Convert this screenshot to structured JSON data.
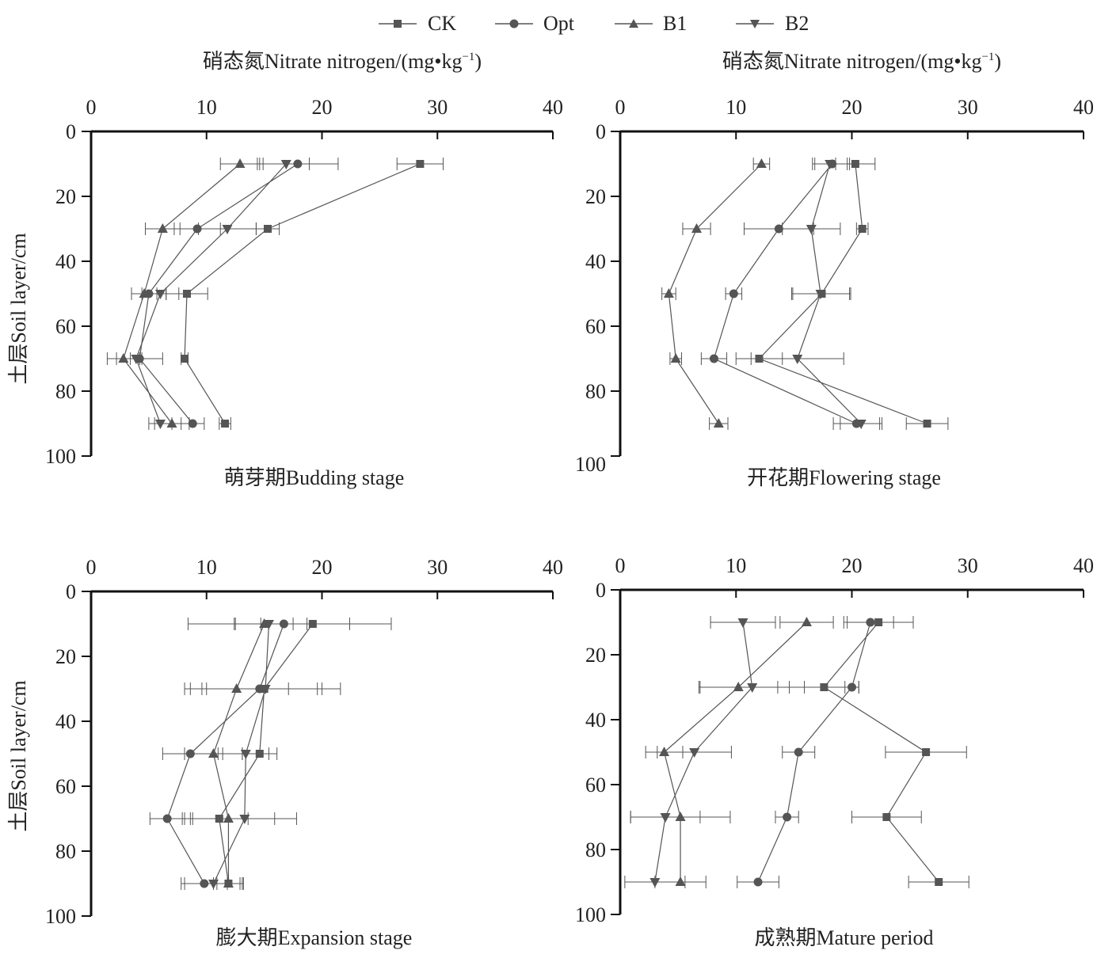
{
  "legend": [
    {
      "label": "CK",
      "marker": "square"
    },
    {
      "label": "Opt",
      "marker": "circle"
    },
    {
      "label": "B1",
      "marker": "triangle-up"
    },
    {
      "label": "B2",
      "marker": "triangle-down"
    }
  ],
  "top_xlabel": "硝态氮Nitrate nitrogen/(mg•kg",
  "top_xlabel_sup": "−1",
  "top_xlabel_close": ")",
  "ylabel": "土层Soil layer/cm",
  "colors": {
    "ink": "#555555",
    "axis": "#111111",
    "text": "#222222"
  },
  "chart_data": [
    {
      "type": "line",
      "title": "萌芽期Budding stage",
      "xlabel": "硝态氮Nitrate nitrogen/(mg•kg−1)",
      "ylabel": "土层Soil layer/cm",
      "xlim": [
        0,
        40
      ],
      "ylim": [
        0,
        100
      ],
      "xticks": [
        0,
        10,
        20,
        30,
        40
      ],
      "yticks": [
        0,
        20,
        40,
        60,
        80,
        100
      ],
      "depths": [
        10,
        30,
        50,
        70,
        90
      ],
      "series": [
        {
          "name": "CK",
          "values": [
            28.5,
            15.3,
            8.3,
            8.1,
            11.6
          ],
          "errors": [
            2.0,
            1.0,
            1.8,
            0.3,
            0.5
          ]
        },
        {
          "name": "Opt",
          "values": [
            17.9,
            9.2,
            5.0,
            4.2,
            8.8
          ],
          "errors": [
            3.5,
            2.0,
            1.5,
            2.0,
            1.0
          ]
        },
        {
          "name": "B1",
          "values": [
            12.9,
            6.2,
            4.6,
            2.8,
            7.0
          ],
          "errors": [
            1.7,
            1.5,
            1.1,
            1.4,
            1.5
          ]
        },
        {
          "name": "B2",
          "values": [
            16.9,
            11.8,
            6.0,
            3.9,
            6.0
          ],
          "errors": [
            2.0,
            2.5,
            1.6,
            0.5,
            1.0
          ]
        }
      ]
    },
    {
      "type": "line",
      "title": "开花期Flowering stage",
      "xlabel": "硝态氮Nitrate nitrogen/(mg•kg−1)",
      "ylabel": "土层Soil layer/cm",
      "xlim": [
        0,
        40
      ],
      "ylim": [
        0,
        100
      ],
      "xticks": [
        0,
        10,
        20,
        30,
        40
      ],
      "yticks": [
        0,
        20,
        40,
        60,
        80,
        100
      ],
      "depths": [
        10,
        30,
        50,
        70,
        90
      ],
      "series": [
        {
          "name": "CK",
          "values": [
            20.3,
            20.9,
            17.4,
            12.0,
            26.5
          ],
          "errors": [
            1.7,
            0.5,
            2.5,
            2.0,
            1.8
          ]
        },
        {
          "name": "Opt",
          "values": [
            18.3,
            13.7,
            9.8,
            8.1,
            20.4
          ],
          "errors": [
            1.5,
            3.0,
            0.7,
            1.1,
            2.0
          ]
        },
        {
          "name": "B1",
          "values": [
            12.2,
            6.6,
            4.2,
            4.8,
            8.5
          ],
          "errors": [
            0.7,
            1.2,
            0.6,
            0.5,
            0.8
          ]
        },
        {
          "name": "B2",
          "values": [
            18.1,
            16.5,
            17.3,
            15.3,
            20.8
          ],
          "errors": [
            1.5,
            2.5,
            2.5,
            4.0,
            1.8
          ]
        }
      ]
    },
    {
      "type": "line",
      "title": "膨大期Expansion stage",
      "xlabel": "硝态氮Nitrate nitrogen/(mg•kg−1)",
      "ylabel": "土层Soil layer/cm",
      "xlim": [
        0,
        40
      ],
      "ylim": [
        0,
        100
      ],
      "xticks": [
        0,
        10,
        20,
        30,
        40
      ],
      "yticks": [
        0,
        20,
        40,
        60,
        80,
        100
      ],
      "depths": [
        10,
        30,
        50,
        70,
        90
      ],
      "series": [
        {
          "name": "CK",
          "values": [
            19.2,
            15.0,
            14.6,
            11.1,
            11.9
          ],
          "errors": [
            6.8,
            5.0,
            1.5,
            2.5,
            1.3
          ]
        },
        {
          "name": "Opt",
          "values": [
            16.7,
            14.6,
            8.6,
            6.6,
            9.8
          ],
          "errors": [
            2.0,
            5.0,
            2.4,
            1.5,
            2.0
          ]
        },
        {
          "name": "B1",
          "values": [
            15.0,
            12.6,
            10.6,
            11.9,
            11.9
          ],
          "errors": [
            2.5,
            4.5,
            2.5,
            4.0,
            1.0
          ]
        },
        {
          "name": "B2",
          "values": [
            15.4,
            15.1,
            13.4,
            13.3,
            10.6
          ],
          "errors": [
            7.0,
            6.5,
            2.0,
            4.5,
            2.5
          ]
        }
      ]
    },
    {
      "type": "line",
      "title": "成熟期Mature period",
      "xlabel": "硝态氮Nitrate nitrogen/(mg•kg−1)",
      "ylabel": "土层Soil layer/cm",
      "xlim": [
        0,
        40
      ],
      "ylim": [
        0,
        100
      ],
      "xticks": [
        0,
        10,
        20,
        30,
        40
      ],
      "yticks": [
        0,
        20,
        40,
        60,
        80,
        100
      ],
      "depths": [
        10,
        30,
        50,
        70,
        90
      ],
      "series": [
        {
          "name": "CK",
          "values": [
            22.3,
            17.6,
            26.4,
            23.0,
            27.5
          ],
          "errors": [
            3.0,
            3.0,
            3.5,
            3.0,
            2.6
          ]
        },
        {
          "name": "Opt",
          "values": [
            21.6,
            20.0,
            15.4,
            14.4,
            11.9
          ],
          "errors": [
            2.0,
            0.6,
            1.4,
            1.0,
            1.8
          ]
        },
        {
          "name": "B1",
          "values": [
            16.1,
            10.2,
            3.8,
            5.2,
            5.2
          ],
          "errors": [
            2.3,
            3.4,
            1.6,
            4.3,
            2.2
          ]
        },
        {
          "name": "B2",
          "values": [
            10.6,
            11.4,
            6.4,
            3.9,
            3.0
          ],
          "errors": [
            2.8,
            4.5,
            3.2,
            3.0,
            2.6
          ]
        }
      ]
    }
  ]
}
